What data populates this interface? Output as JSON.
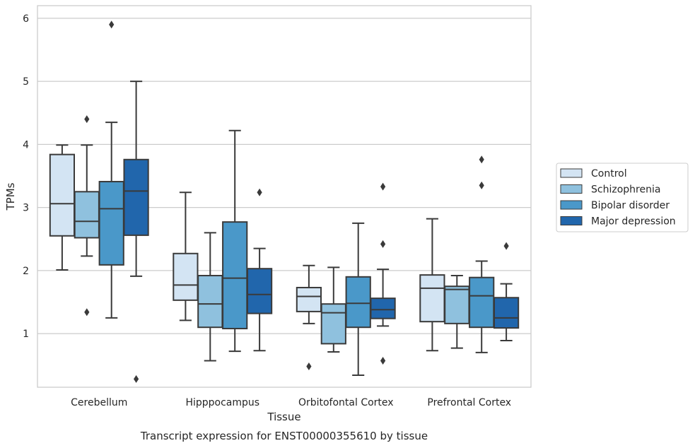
{
  "chart_data": {
    "type": "box",
    "title": "",
    "caption": "Transcript expression for ENST00000355610 by tissue",
    "xlabel": "Tissue",
    "ylabel": "TPMs",
    "ylim": [
      0.15,
      6.2
    ],
    "yticks": [
      1,
      2,
      3,
      4,
      5,
      6
    ],
    "grid": "horizontal",
    "legend_position": "right",
    "categories": [
      "Cerebellum",
      "Hipppocampus",
      "Orbitofontal Cortex",
      "Prefrontal Cortex"
    ],
    "series": [
      {
        "name": "Control",
        "color": "#d3e4f3",
        "boxes": [
          {
            "whisker_low": 2.01,
            "q1": 2.55,
            "median": 3.06,
            "q3": 3.84,
            "whisker_high": 3.99,
            "outliers": []
          },
          {
            "whisker_low": 1.21,
            "q1": 1.53,
            "median": 1.77,
            "q3": 2.27,
            "whisker_high": 3.24,
            "outliers": []
          },
          {
            "whisker_low": 1.16,
            "q1": 1.35,
            "median": 1.59,
            "q3": 1.73,
            "whisker_high": 2.08,
            "outliers": [
              0.48
            ]
          },
          {
            "whisker_low": 0.73,
            "q1": 1.19,
            "median": 1.72,
            "q3": 1.93,
            "whisker_high": 2.82,
            "outliers": []
          }
        ]
      },
      {
        "name": "Schizophrenia",
        "color": "#8fc1de",
        "boxes": [
          {
            "whisker_low": 2.23,
            "q1": 2.52,
            "median": 2.78,
            "q3": 3.25,
            "whisker_high": 3.99,
            "outliers": [
              4.4,
              1.34
            ]
          },
          {
            "whisker_low": 0.57,
            "q1": 1.1,
            "median": 1.47,
            "q3": 1.92,
            "whisker_high": 2.6,
            "outliers": []
          },
          {
            "whisker_low": 0.71,
            "q1": 0.84,
            "median": 1.33,
            "q3": 1.47,
            "whisker_high": 2.05,
            "outliers": []
          },
          {
            "whisker_low": 0.77,
            "q1": 1.16,
            "median": 1.7,
            "q3": 1.75,
            "whisker_high": 1.92,
            "outliers": []
          }
        ]
      },
      {
        "name": "Bipolar disorder",
        "color": "#4a98c9",
        "boxes": [
          {
            "whisker_low": 1.25,
            "q1": 2.09,
            "median": 2.98,
            "q3": 3.41,
            "whisker_high": 4.35,
            "outliers": [
              5.9
            ]
          },
          {
            "whisker_low": 0.72,
            "q1": 1.08,
            "median": 1.88,
            "q3": 2.77,
            "whisker_high": 4.22,
            "outliers": []
          },
          {
            "whisker_low": 0.34,
            "q1": 1.1,
            "median": 1.48,
            "q3": 1.9,
            "whisker_high": 2.75,
            "outliers": []
          },
          {
            "whisker_low": 0.7,
            "q1": 1.1,
            "median": 1.6,
            "q3": 1.89,
            "whisker_high": 2.15,
            "outliers": [
              3.76,
              3.35
            ]
          }
        ]
      },
      {
        "name": "Major depression",
        "color": "#2166ac",
        "boxes": [
          {
            "whisker_low": 1.91,
            "q1": 2.56,
            "median": 3.26,
            "q3": 3.76,
            "whisker_high": 5.0,
            "outliers": [
              0.28
            ]
          },
          {
            "whisker_low": 0.73,
            "q1": 1.32,
            "median": 1.62,
            "q3": 2.03,
            "whisker_high": 2.35,
            "outliers": [
              3.24
            ]
          },
          {
            "whisker_low": 1.12,
            "q1": 1.24,
            "median": 1.38,
            "q3": 1.56,
            "whisker_high": 2.02,
            "outliers": [
              3.33,
              2.42,
              0.57
            ]
          },
          {
            "whisker_low": 0.89,
            "q1": 1.09,
            "median": 1.25,
            "q3": 1.57,
            "whisker_high": 1.79,
            "outliers": [
              2.39
            ]
          }
        ]
      }
    ]
  }
}
